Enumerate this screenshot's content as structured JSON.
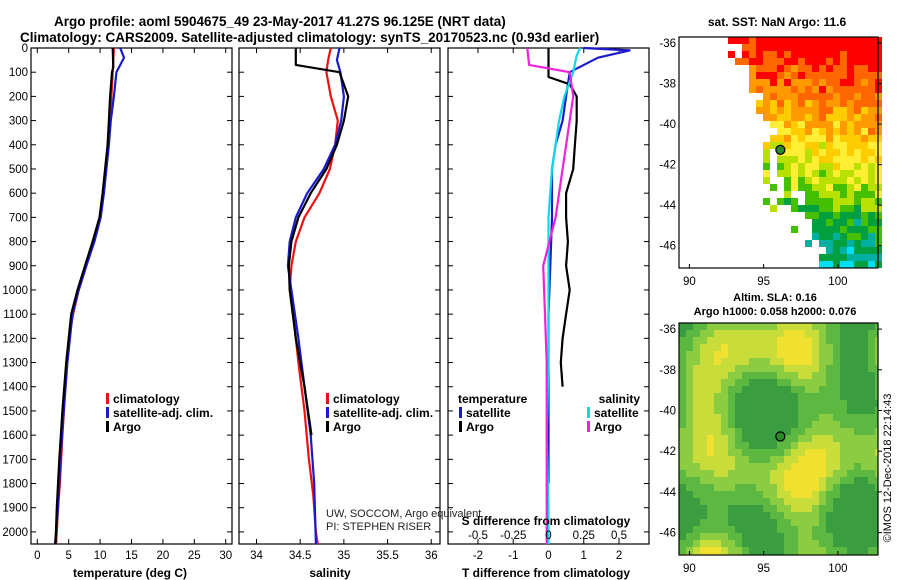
{
  "header": {
    "line1": "Argo profile: aoml 5904675_49 23-May-2017 41.27S 96.125E (NRT data)",
    "line2": "Climatology: CARS2009. Satellite-adjusted climatology: synTS_20170523.nc (0.93d earlier)"
  },
  "colors": {
    "red": "#ee1111",
    "blue": "#1a1acc",
    "black": "#000000",
    "cyan": "#11d8e8",
    "magenta": "#ee22dd"
  },
  "chart_data": [
    {
      "type": "line",
      "panel": "temperature",
      "xlabel": "temperature (deg C)",
      "xlim": [
        -1,
        31
      ],
      "xticks": [
        0,
        5,
        10,
        15,
        20,
        25,
        30
      ],
      "ylim": [
        0,
        2050
      ],
      "yticks": [
        0,
        100,
        200,
        300,
        400,
        500,
        600,
        700,
        800,
        900,
        1000,
        1100,
        1200,
        1300,
        1400,
        1500,
        1600,
        1700,
        1800,
        1900,
        2000
      ],
      "legend": [
        "climatology",
        "satellite-adj. clim.",
        "Argo"
      ],
      "series": [
        {
          "name": "climatology",
          "color": "red",
          "x": [
            12.2,
            12.0,
            11.8,
            11.6,
            11.3,
            10.9,
            10.5,
            10.0,
            9.0,
            7.8,
            6.6,
            5.7,
            5.0,
            4.5,
            4.0,
            3.6,
            3.3,
            3.1,
            3.0
          ],
          "depth": [
            0,
            100,
            200,
            300,
            400,
            500,
            600,
            700,
            800,
            900,
            1000,
            1100,
            1200,
            1400,
            1600,
            1800,
            1900,
            2000,
            2050
          ]
        },
        {
          "name": "satellite-adj. clim.",
          "color": "blue",
          "x": [
            13.2,
            13.8,
            12.6,
            12.2,
            11.7,
            11.4,
            11.0,
            10.6,
            10.1,
            9.1,
            7.8,
            6.6,
            5.6,
            4.8,
            4.2,
            3.7,
            3.3,
            3.0,
            2.8
          ],
          "depth": [
            0,
            40,
            100,
            200,
            300,
            400,
            500,
            600,
            700,
            800,
            900,
            1000,
            1100,
            1300,
            1500,
            1700,
            1900,
            2000,
            2050
          ]
        },
        {
          "name": "Argo",
          "color": "black",
          "x": [
            12.0,
            12.1,
            11.9,
            11.6,
            11.4,
            11.2,
            10.8,
            10.4,
            9.9,
            8.8,
            7.6,
            6.4,
            5.4,
            4.6,
            4.0,
            3.5,
            3.1,
            2.9
          ],
          "depth": [
            0,
            80,
            100,
            200,
            300,
            400,
            500,
            600,
            700,
            800,
            900,
            1000,
            1100,
            1300,
            1500,
            1700,
            1900,
            2050
          ]
        }
      ]
    },
    {
      "type": "line",
      "panel": "salinity",
      "xlabel": "salinity",
      "xlim": [
        33.8,
        36.1
      ],
      "xticks": [
        34,
        34.5,
        35,
        35.5,
        36
      ],
      "xticklabels": [
        "34",
        "34.5",
        "35",
        "35.5",
        "36"
      ],
      "ylim": [
        0,
        2050
      ],
      "legend": [
        "climatology",
        "satellite-adj. clim.",
        "Argo"
      ],
      "annotations": [
        "UW, SOCCOM, Argo equivalent",
        "PI: STEPHEN RISER"
      ],
      "series": [
        {
          "name": "climatology",
          "color": "red",
          "x": [
            34.85,
            34.82,
            34.8,
            34.85,
            34.93,
            34.9,
            34.84,
            34.72,
            34.55,
            34.45,
            34.4,
            34.38,
            34.42,
            34.48,
            34.55,
            34.6,
            34.65,
            34.68,
            34.7
          ],
          "depth": [
            0,
            50,
            100,
            200,
            300,
            400,
            500,
            600,
            700,
            800,
            900,
            1000,
            1100,
            1300,
            1500,
            1700,
            1850,
            2000,
            2050
          ]
        },
        {
          "name": "satellite-adj. clim.",
          "color": "blue",
          "x": [
            34.95,
            34.92,
            34.96,
            35.0,
            34.97,
            34.9,
            34.77,
            34.58,
            34.45,
            34.38,
            34.36,
            34.4,
            34.48,
            34.55,
            34.62,
            34.66,
            34.68
          ],
          "depth": [
            0,
            50,
            100,
            200,
            300,
            400,
            500,
            600,
            700,
            800,
            900,
            1000,
            1200,
            1400,
            1600,
            1800,
            2050
          ]
        },
        {
          "name": "Argo",
          "color": "black",
          "x": [
            34.45,
            34.45,
            34.95,
            35.05,
            35.0,
            34.92,
            34.8,
            34.62,
            34.48,
            34.4,
            34.37,
            34.38,
            34.45,
            34.55,
            34.63
          ],
          "depth": [
            0,
            70,
            100,
            200,
            300,
            400,
            500,
            600,
            700,
            800,
            900,
            1000,
            1200,
            1400,
            1600
          ]
        }
      ]
    },
    {
      "type": "line",
      "panel": "difference",
      "xlabel": "T difference from climatology",
      "xlim": [
        -2.85,
        2.85
      ],
      "xticks": [
        -2,
        -1,
        0,
        1,
        2
      ],
      "xticklabels": [
        "-2",
        "-1",
        "0",
        "1",
        "2"
      ],
      "top_xlabel": "S difference from climatology",
      "top_xticklabels": [
        "-0.5",
        "-0.25",
        "0",
        "0.25",
        "0.5"
      ],
      "top_xticks_T": [
        -2,
        -1,
        0,
        1,
        2
      ],
      "ylim": [
        0,
        2050
      ],
      "legend_left_title": "temperature",
      "legend_right_title": "salinity",
      "legend": [
        "satellite",
        "Argo",
        "satellite",
        "Argo"
      ],
      "series": [
        {
          "name": "temperature satellite",
          "color": "blue",
          "x": [
            1.0,
            2.3,
            1.4,
            0.6,
            0.5,
            0.4,
            0.2,
            0.1,
            0.1,
            0.1,
            0.05,
            0.0,
            0.0,
            0.0,
            0.0
          ],
          "depth": [
            0,
            10,
            40,
            100,
            200,
            300,
            400,
            500,
            600,
            700,
            900,
            1100,
            1300,
            1600,
            1800
          ]
        },
        {
          "name": "temperature Argo",
          "color": "black",
          "x": [
            0.0,
            0.0,
            0.6,
            0.8,
            0.8,
            0.75,
            0.7,
            0.5,
            0.5,
            0.55,
            0.5,
            0.6,
            0.5,
            0.4,
            0.35,
            0.4
          ],
          "depth": [
            0,
            120,
            150,
            200,
            300,
            400,
            500,
            600,
            700,
            800,
            900,
            1000,
            1100,
            1200,
            1300,
            1400
          ]
        },
        {
          "name": "salinity satellite",
          "color": "cyan",
          "x": [
            0.9,
            0.8,
            0.7,
            0.45,
            0.3,
            0.1,
            0.0,
            0.0,
            0.0,
            -0.05,
            0.0,
            0.0
          ],
          "depth": [
            0,
            30,
            100,
            200,
            300,
            500,
            700,
            1000,
            1300,
            1600,
            1900,
            2050
          ]
        },
        {
          "name": "salinity Argo",
          "color": "magenta",
          "x": [
            -0.6,
            -0.55,
            0.6,
            0.7,
            0.6,
            0.4,
            0.2,
            -0.15,
            -0.1,
            -0.05,
            -0.05,
            -0.05
          ],
          "depth": [
            0,
            70,
            100,
            200,
            300,
            500,
            700,
            900,
            1100,
            1300,
            1600,
            2050
          ]
        }
      ]
    },
    {
      "type": "heatmap",
      "panel": "sst_map",
      "title": "sat. SST: NaN Argo: 11.6",
      "xticks": [
        90,
        95,
        100
      ],
      "yticks": [
        -36,
        -38,
        -40,
        -42,
        -44,
        -46
      ],
      "xlim": [
        89.3,
        102.7
      ],
      "ylim": [
        -47.1,
        -35.7
      ],
      "argo_position": [
        96.125,
        -41.27
      ]
    },
    {
      "type": "heatmap",
      "panel": "sla_map",
      "title_line1": "Altim. SLA: 0.16",
      "title_line2": "Argo h1000: 0.058 h2000: 0.076",
      "xticks": [
        90,
        95,
        100
      ],
      "yticks": [
        -36,
        -38,
        -40,
        -42,
        -44,
        -46
      ],
      "xlim": [
        89.3,
        102.7
      ],
      "ylim": [
        -47.1,
        -35.7
      ],
      "argo_position": [
        96.125,
        -41.27
      ]
    }
  ],
  "side_label": "©IMOS 12-Dec-2018 22:14:43"
}
